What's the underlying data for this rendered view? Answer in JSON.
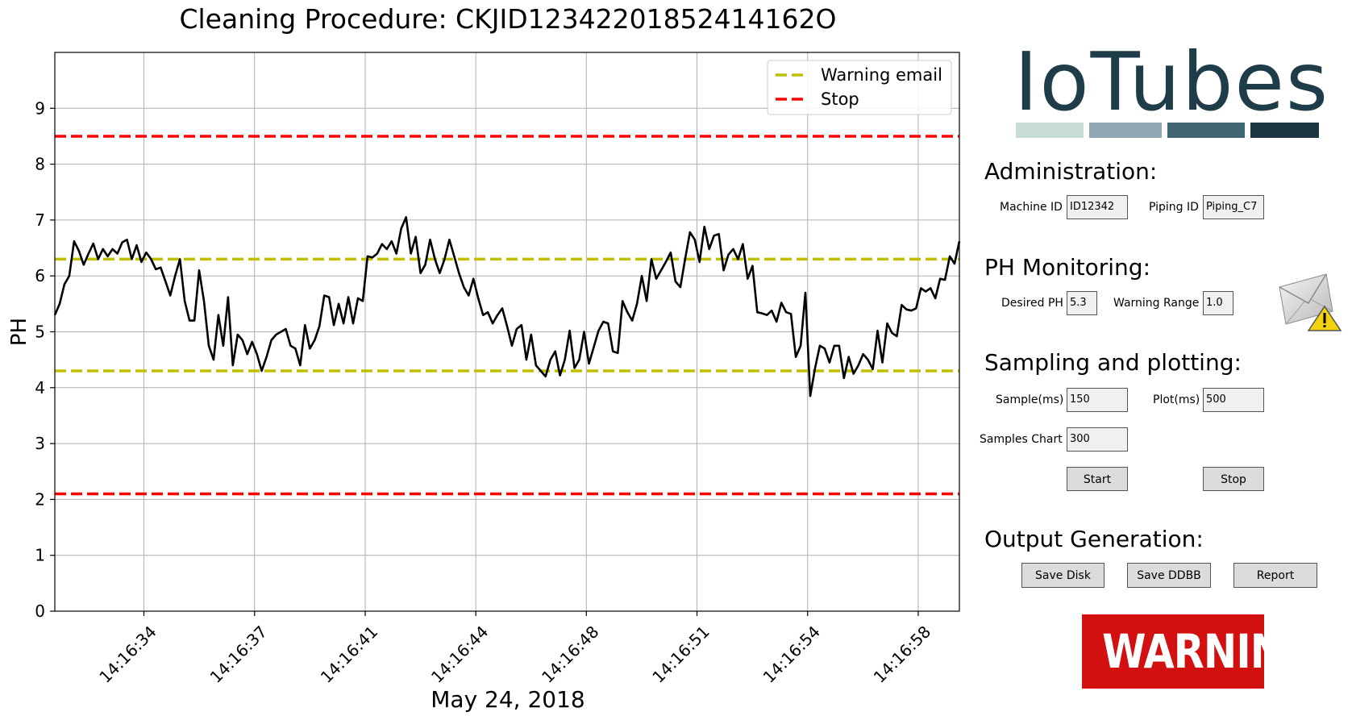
{
  "chart_data": {
    "type": "line",
    "title": "Cleaning Procedure: CKJID12342201852414162O",
    "ylabel": "PH",
    "xlabel": "May 24, 2018",
    "ylim": [
      0,
      10
    ],
    "yticks": [
      0,
      1,
      2,
      3,
      4,
      5,
      6,
      7,
      8,
      9
    ],
    "xtick_labels": [
      "14:16:34",
      "14:16:37",
      "14:16:41",
      "14:16:44",
      "14:16:48",
      "14:16:51",
      "14:16:54",
      "14:16:58"
    ],
    "grid": true,
    "legend_position": "top-right",
    "thresholds": [
      {
        "name": "Warning email",
        "color": "#bfbf00",
        "values": [
          4.3,
          6.3
        ]
      },
      {
        "name": "Stop",
        "color": "#ff0000",
        "values": [
          2.1,
          8.5
        ]
      }
    ],
    "series": [
      {
        "color": "#000000",
        "values": [
          5.3,
          5.5,
          5.85,
          6.0,
          6.62,
          6.45,
          6.2,
          6.4,
          6.58,
          6.3,
          6.48,
          6.35,
          6.48,
          6.4,
          6.6,
          6.65,
          6.3,
          6.55,
          6.25,
          6.42,
          6.3,
          6.12,
          6.15,
          5.9,
          5.65,
          6.0,
          6.3,
          5.55,
          5.2,
          5.2,
          6.1,
          5.55,
          4.75,
          4.5,
          5.3,
          4.75,
          5.62,
          4.4,
          4.95,
          4.85,
          4.6,
          4.82,
          4.6,
          4.3,
          4.55,
          4.85,
          4.95,
          5.0,
          5.05,
          4.75,
          4.7,
          4.4,
          5.12,
          4.7,
          4.85,
          5.1,
          5.65,
          5.62,
          5.12,
          5.5,
          5.15,
          5.62,
          5.15,
          5.6,
          5.55,
          6.35,
          6.33,
          6.4,
          6.57,
          6.48,
          6.62,
          6.4,
          6.85,
          7.05,
          6.4,
          6.7,
          6.05,
          6.2,
          6.65,
          6.3,
          6.05,
          6.3,
          6.65,
          6.35,
          6.05,
          5.8,
          5.65,
          5.95,
          5.6,
          5.3,
          5.35,
          5.15,
          5.3,
          5.42,
          5.1,
          4.75,
          5.05,
          5.12,
          4.5,
          4.95,
          4.4,
          4.3,
          4.2,
          4.5,
          4.65,
          4.22,
          4.5,
          5.02,
          4.35,
          4.5,
          5.0,
          4.43,
          4.72,
          5.02,
          5.18,
          5.15,
          4.65,
          4.62,
          5.55,
          5.35,
          5.2,
          5.5,
          6.0,
          5.55,
          6.3,
          5.95,
          6.1,
          6.25,
          6.42,
          5.9,
          5.8,
          6.3,
          6.78,
          6.65,
          6.25,
          6.88,
          6.48,
          6.72,
          6.75,
          6.1,
          6.38,
          6.48,
          6.3,
          6.57,
          5.95,
          6.18,
          5.35,
          5.33,
          5.3,
          5.38,
          5.18,
          5.52,
          5.35,
          5.32,
          4.55,
          4.75,
          5.7,
          3.85,
          4.35,
          4.75,
          4.7,
          4.45,
          4.75,
          4.75,
          4.17,
          4.55,
          4.25,
          4.4,
          4.6,
          4.5,
          4.33,
          5.02,
          4.45,
          5.15,
          4.98,
          4.92,
          5.48,
          5.4,
          5.38,
          5.42,
          5.78,
          5.72,
          5.78,
          5.6,
          5.95,
          5.93,
          6.35,
          6.22,
          6.62
        ]
      }
    ]
  },
  "brand": {
    "logo_text": "IoTubes",
    "bar_colors": [
      "#c8ddd7",
      "#8fa7b2",
      "#3f6472",
      "#1b3640"
    ]
  },
  "administration": {
    "heading": "Administration:",
    "machine_id_label": "Machine ID",
    "machine_id_value": "ID12342",
    "piping_id_label": "Piping ID",
    "piping_id_value": "Piping_C7"
  },
  "ph_monitoring": {
    "heading": "PH Monitoring:",
    "desired_ph_label": "Desired PH",
    "desired_ph_value": "5.3",
    "warning_range_label": "Warning Range",
    "warning_range_value": "1.0",
    "alert_icon": "email-warning-icon"
  },
  "sampling": {
    "heading": "Sampling and plotting:",
    "sample_ms_label": "Sample(ms)",
    "sample_ms_value": "150",
    "plot_ms_label": "Plot(ms)",
    "plot_ms_value": "500",
    "samples_chart_label": "Samples Chart",
    "samples_chart_value": "300",
    "start_label": "Start",
    "stop_label": "Stop"
  },
  "output": {
    "heading": "Output Generation:",
    "save_disk_label": "Save Disk",
    "save_ddbb_label": "Save DDBB",
    "report_label": "Report"
  },
  "warning_badge": {
    "text": "WARNING!",
    "color": "#d21010"
  }
}
